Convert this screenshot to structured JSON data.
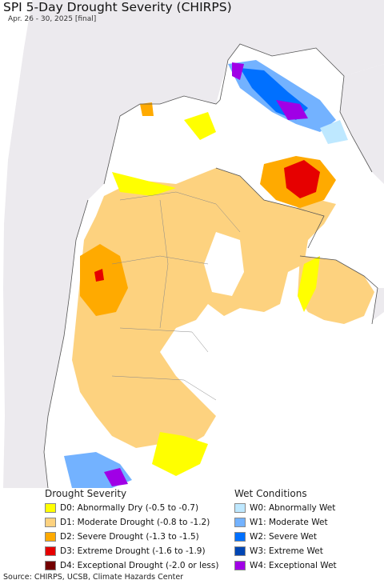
{
  "header": {
    "title": "SPI 5-Day Drought Severity (CHIRPS)",
    "subtitle": "Apr. 26 - 30, 2025 [final]"
  },
  "colors": {
    "ocean": "#ffffff",
    "outside_land": "#eceaee",
    "border": "#555555"
  },
  "legend": {
    "drought": {
      "heading": "Drought Severity",
      "items": [
        {
          "label": "D0: Abnormally Dry (-0.5 to -0.7)",
          "color": "#ffff00"
        },
        {
          "label": "D1: Moderate Drought (-0.8 to -1.2)",
          "color": "#fdd27f"
        },
        {
          "label": "D2: Severe Drought (-1.3 to -1.5)",
          "color": "#ffaa00"
        },
        {
          "label": "D3: Extreme Drought (-1.6 to -1.9)",
          "color": "#e60000"
        },
        {
          "label": "D4: Exceptional Drought (-2.0 or less)",
          "color": "#730000"
        }
      ]
    },
    "wet": {
      "heading": "Wet Conditions",
      "items": [
        {
          "label": "W0: Abnormally Wet",
          "color": "#bee8ff"
        },
        {
          "label": "W1: Moderate Wet",
          "color": "#73b2ff"
        },
        {
          "label": "W2: Severe Wet",
          "color": "#0070ff"
        },
        {
          "label": "W3: Extreme Wet",
          "color": "#0046b4"
        },
        {
          "label": "W4: Exceptional Wet",
          "color": "#a000e6"
        }
      ]
    }
  },
  "footer": {
    "source": "Source: CHIRPS, UCSB, Climate Hazards Center"
  }
}
